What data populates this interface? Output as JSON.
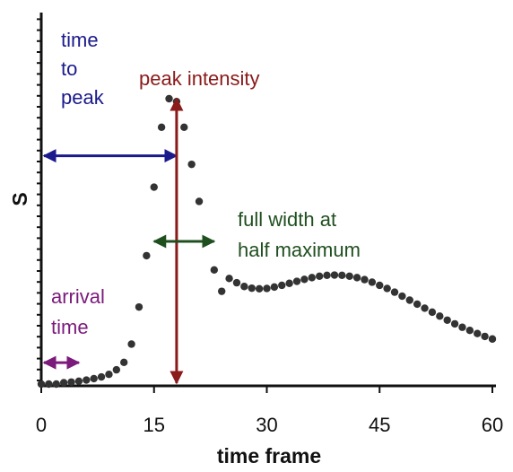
{
  "chart_data": {
    "type": "scatter",
    "title": "",
    "xlabel": "time frame",
    "ylabel": "S",
    "xlim": [
      0,
      60
    ],
    "ylim": [
      0,
      100
    ],
    "xticks": [
      0,
      15,
      30,
      45,
      60
    ],
    "x_tick_labels": [
      "0",
      "15",
      "30",
      "45",
      "60"
    ],
    "y_tick_labels_visible": false,
    "grid": false,
    "series": [
      {
        "color": "#333333",
        "marker": "dot",
        "x": [
          0,
          1,
          2,
          3,
          4,
          5,
          6,
          7,
          8,
          9,
          10,
          11,
          12,
          13,
          14,
          15,
          16,
          17,
          18,
          19,
          20,
          21,
          22,
          23,
          24,
          25,
          26,
          27,
          28,
          29,
          30,
          31,
          32,
          33,
          34,
          35,
          36,
          37,
          38,
          39,
          40,
          41,
          42,
          43,
          44,
          45,
          46,
          47,
          48,
          49,
          50,
          51,
          52,
          53,
          54,
          55,
          56,
          57,
          58,
          59,
          60
        ],
        "y": [
          0,
          0,
          0,
          0.5,
          0.7,
          1,
          1.4,
          1.9,
          2.5,
          3.4,
          5,
          7.6,
          14,
          27,
          45,
          69,
          90,
          100,
          99,
          90,
          77,
          64,
          50,
          40,
          32.5,
          37,
          35.5,
          34.2,
          33.6,
          33.4,
          33.5,
          34,
          34.6,
          35.3,
          36,
          36.7,
          37.3,
          37.8,
          38.1,
          38.2,
          38.1,
          37.8,
          37.3,
          36.6,
          35.7,
          34.6,
          33.5,
          32.2,
          30.8,
          29.4,
          28,
          26.6,
          25.2,
          23.8,
          22.4,
          21.1,
          19.9,
          18.8,
          17.7,
          16.7,
          15.8
        ]
      }
    ],
    "annotations": [
      {
        "id": "time_to_peak",
        "lines": [
          "time",
          "to",
          "peak"
        ],
        "color": "#1a1a8c",
        "arrow": {
          "kind": "horizontal",
          "x_from": 0,
          "x_to": 18,
          "y": 80
        }
      },
      {
        "id": "peak_intensity",
        "lines": [
          "peak intensity"
        ],
        "color": "#8b1a1a",
        "arrow": {
          "kind": "vertical",
          "x": 18,
          "y_from": 0,
          "y_to": 100
        }
      },
      {
        "id": "fwhm",
        "lines": [
          "full width at",
          "half maximum"
        ],
        "color": "#1f4f1f",
        "arrow": {
          "kind": "horizontal",
          "x_from": 15,
          "x_to": 23,
          "y": 50
        }
      },
      {
        "id": "arrival_time",
        "lines": [
          "arrival",
          "time"
        ],
        "color": "#7b1a7b",
        "arrow": {
          "kind": "horizontal",
          "x_from": 0,
          "x_to": 5,
          "y": 7.5
        }
      }
    ]
  }
}
